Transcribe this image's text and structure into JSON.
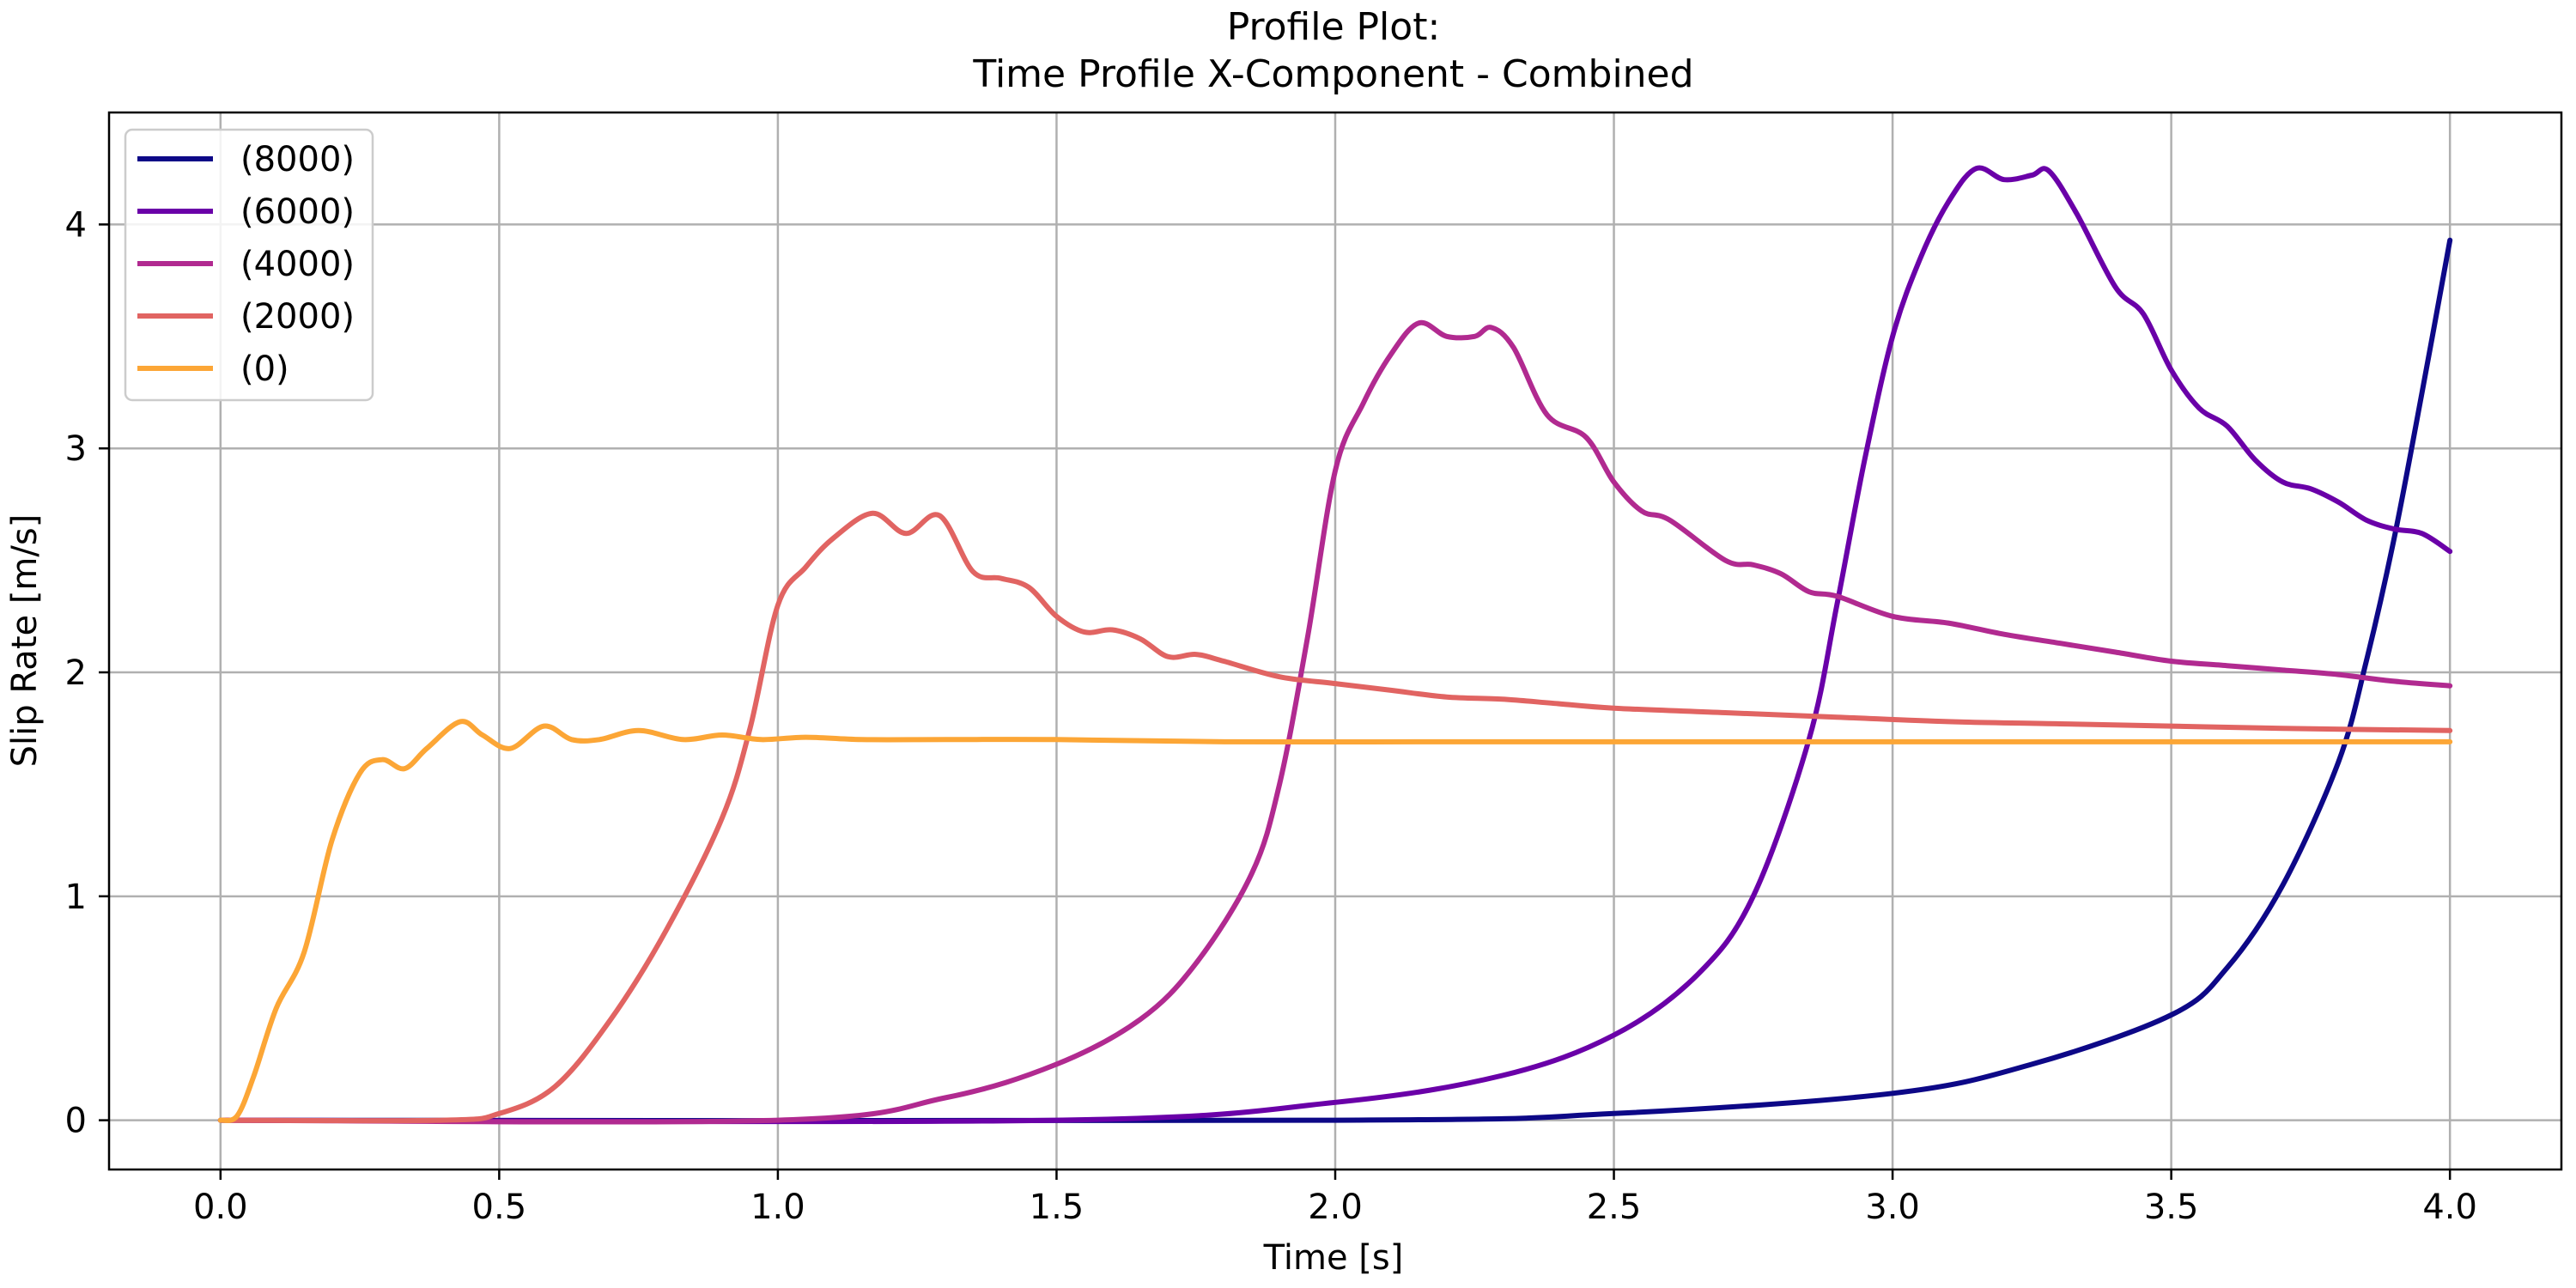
{
  "chart_data": {
    "type": "line",
    "title": "Profile Plot:",
    "subtitle": "Time Profile X-Component - Combined",
    "xlabel": "Time [s]",
    "ylabel": "Slip Rate [m/s]",
    "xlim": [
      -0.2,
      4.2
    ],
    "ylim": [
      -0.22,
      4.5
    ],
    "xticks": [
      0.0,
      0.5,
      1.0,
      1.5,
      2.0,
      2.5,
      3.0,
      3.5,
      4.0
    ],
    "xtick_labels": [
      "0.0",
      "0.5",
      "1.0",
      "1.5",
      "2.0",
      "2.5",
      "3.0",
      "3.5",
      "4.0"
    ],
    "yticks": [
      0,
      1,
      2,
      3,
      4
    ],
    "ytick_labels": [
      "0",
      "1",
      "2",
      "3",
      "4"
    ],
    "grid": true,
    "legend_position": "top-left",
    "series": [
      {
        "name": "(8000)",
        "color": "#0d0887",
        "x": [
          0.0,
          2.0,
          2.5,
          3.0,
          3.25,
          3.5,
          3.6,
          3.7,
          3.8,
          3.85,
          3.9,
          3.95,
          4.0
        ],
        "y": [
          0.0,
          0.0,
          0.03,
          0.12,
          0.25,
          0.47,
          0.68,
          1.05,
          1.6,
          2.05,
          2.6,
          3.25,
          3.93
        ]
      },
      {
        "name": "(6000)",
        "color": "#6a00a8",
        "x": [
          0.0,
          1.5,
          2.0,
          2.3,
          2.5,
          2.65,
          2.75,
          2.85,
          2.9,
          2.95,
          3.0,
          3.05,
          3.1,
          3.15,
          3.2,
          3.25,
          3.28,
          3.33,
          3.4,
          3.45,
          3.5,
          3.55,
          3.6,
          3.65,
          3.7,
          3.75,
          3.8,
          3.85,
          3.9,
          3.95,
          4.0
        ],
        "y": [
          0.0,
          0.0,
          0.08,
          0.2,
          0.38,
          0.65,
          1.0,
          1.7,
          2.3,
          2.95,
          3.5,
          3.85,
          4.1,
          4.25,
          4.2,
          4.22,
          4.24,
          4.05,
          3.72,
          3.6,
          3.35,
          3.18,
          3.1,
          2.95,
          2.85,
          2.82,
          2.76,
          2.68,
          2.64,
          2.62,
          2.54
        ]
      },
      {
        "name": "(4000)",
        "color": "#b12a90",
        "x": [
          0.0,
          1.0,
          1.3,
          1.5,
          1.65,
          1.75,
          1.85,
          1.9,
          1.95,
          2.0,
          2.05,
          2.1,
          2.15,
          2.2,
          2.25,
          2.28,
          2.32,
          2.38,
          2.45,
          2.5,
          2.55,
          2.6,
          2.7,
          2.75,
          2.8,
          2.85,
          2.9,
          3.0,
          3.1,
          3.2,
          3.3,
          3.4,
          3.5,
          3.6,
          3.7,
          3.8,
          3.9,
          4.0
        ],
        "y": [
          0.0,
          0.0,
          0.1,
          0.25,
          0.45,
          0.7,
          1.1,
          1.5,
          2.15,
          2.9,
          3.2,
          3.42,
          3.56,
          3.5,
          3.5,
          3.54,
          3.45,
          3.15,
          3.05,
          2.85,
          2.72,
          2.68,
          2.5,
          2.48,
          2.44,
          2.36,
          2.34,
          2.25,
          2.22,
          2.17,
          2.13,
          2.09,
          2.05,
          2.03,
          2.01,
          1.99,
          1.96,
          1.94
        ]
      },
      {
        "name": "(2000)",
        "color": "#e16462",
        "x": [
          0.0,
          0.4,
          0.5,
          0.6,
          0.7,
          0.8,
          0.9,
          0.95,
          1.0,
          1.05,
          1.1,
          1.17,
          1.23,
          1.29,
          1.35,
          1.4,
          1.45,
          1.5,
          1.55,
          1.6,
          1.65,
          1.7,
          1.75,
          1.8,
          1.9,
          2.0,
          2.1,
          2.2,
          2.3,
          2.4,
          2.5,
          2.7,
          2.9,
          3.1,
          3.3,
          3.5,
          3.7,
          4.0
        ],
        "y": [
          0.0,
          0.0,
          0.03,
          0.15,
          0.45,
          0.85,
          1.35,
          1.75,
          2.3,
          2.47,
          2.6,
          2.71,
          2.62,
          2.7,
          2.45,
          2.42,
          2.38,
          2.25,
          2.18,
          2.19,
          2.15,
          2.07,
          2.08,
          2.05,
          1.98,
          1.95,
          1.92,
          1.89,
          1.88,
          1.86,
          1.84,
          1.82,
          1.8,
          1.78,
          1.77,
          1.76,
          1.75,
          1.74
        ]
      },
      {
        "name": "(0)",
        "color": "#fca636",
        "x": [
          0.0,
          0.03,
          0.06,
          0.1,
          0.15,
          0.2,
          0.25,
          0.29,
          0.33,
          0.37,
          0.43,
          0.47,
          0.52,
          0.58,
          0.63,
          0.68,
          0.75,
          0.83,
          0.9,
          0.97,
          1.05,
          1.15,
          1.3,
          1.5,
          1.8,
          2.2,
          2.6,
          3.0,
          3.5,
          4.0
        ],
        "y": [
          0.0,
          0.02,
          0.2,
          0.5,
          0.75,
          1.25,
          1.55,
          1.61,
          1.57,
          1.66,
          1.78,
          1.72,
          1.66,
          1.76,
          1.7,
          1.7,
          1.74,
          1.7,
          1.72,
          1.7,
          1.71,
          1.7,
          1.7,
          1.7,
          1.69,
          1.69,
          1.69,
          1.69,
          1.69,
          1.69
        ]
      }
    ]
  }
}
